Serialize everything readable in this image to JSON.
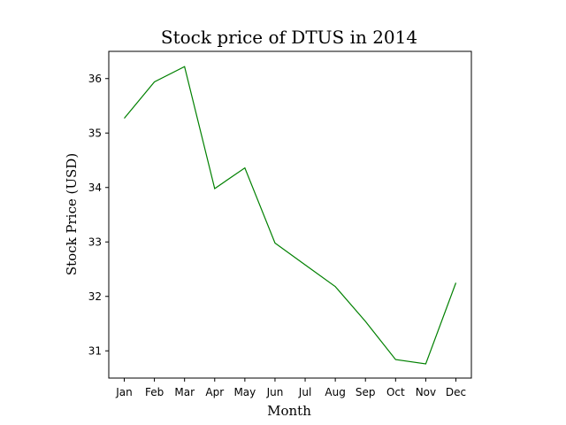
{
  "chart_data": {
    "type": "line",
    "title": "Stock price of DTUS in 2014",
    "xlabel": "Month",
    "ylabel": "Stock Price (USD)",
    "categories": [
      "Jan",
      "Feb",
      "Mar",
      "Apr",
      "May",
      "Jun",
      "Jul",
      "Aug",
      "Sep",
      "Oct",
      "Nov",
      "Dec"
    ],
    "series": [
      {
        "values": [
          35.27,
          35.94,
          36.22,
          33.98,
          34.36,
          32.98,
          32.58,
          32.18,
          31.54,
          30.84,
          30.76,
          32.25
        ],
        "color": "#008000"
      }
    ],
    "ylim": [
      30.5,
      36.5
    ],
    "yticks": [
      31,
      32,
      33,
      34,
      35,
      36
    ],
    "grid": false,
    "legend": "none"
  }
}
